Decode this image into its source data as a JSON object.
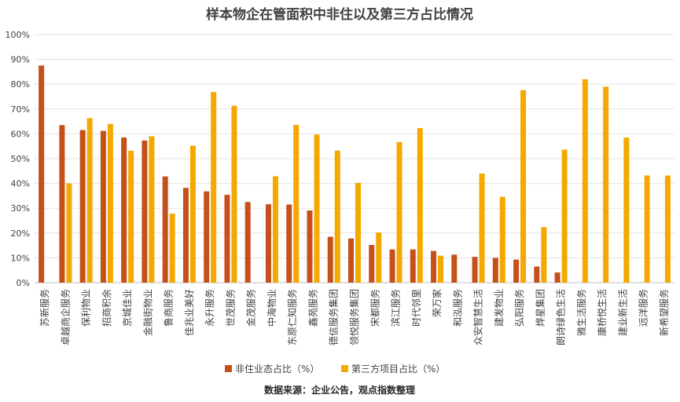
{
  "chart_data": {
    "type": "bar",
    "title": "样本物企在管面积中非住以及第三方占比情况",
    "source": "数据来源：企业公告，观点指数整理",
    "ylim": [
      0,
      100
    ],
    "y_ticks": [
      "0%",
      "10%",
      "20%",
      "30%",
      "40%",
      "50%",
      "60%",
      "70%",
      "80%",
      "90%",
      "100%"
    ],
    "grid": true,
    "legend_position": "bottom",
    "categories": [
      "苏新服务",
      "卓越商企服务",
      "保利物业",
      "招商积余",
      "京城佳业",
      "金融街物业",
      "鲁商服务",
      "佳兆业美好",
      "永升服务",
      "世茂服务",
      "金茂服务",
      "中海物业",
      "东原仁知服务",
      "鑫苑服务",
      "德信服务集团",
      "领悦服务集团",
      "宋都服务",
      "滨江服务",
      "时代邻里",
      "荣万家",
      "和泓服务",
      "众安智慧生活",
      "建发物业",
      "弘阳服务",
      "烨星集团",
      "朗诗绿色生活",
      "雅生活服务",
      "康桥悦生活",
      "建业新生活",
      "远洋服务",
      "新希望服务"
    ],
    "series": [
      {
        "name": "非住业态占比（%）",
        "color": "#C5501A",
        "values": [
          87.5,
          63.5,
          61.5,
          61.2,
          58.5,
          57.3,
          42.8,
          38.2,
          36.8,
          35.4,
          32.5,
          31.6,
          31.5,
          29.1,
          18.5,
          17.8,
          15.2,
          13.4,
          13.4,
          12.8,
          11.3,
          10.4,
          10.0,
          9.3,
          6.5,
          4.1,
          null,
          null,
          null,
          null,
          null
        ]
      },
      {
        "name": "第三方项目占比（%）",
        "color": "#F5A800",
        "values": [
          null,
          40.0,
          66.3,
          64.0,
          53.2,
          59.0,
          27.8,
          55.2,
          76.8,
          71.3,
          null,
          42.9,
          63.6,
          59.7,
          53.2,
          40.2,
          20.2,
          56.7,
          62.3,
          10.9,
          null,
          44.0,
          34.6,
          77.6,
          22.4,
          53.6,
          82.0,
          79.0,
          58.5,
          43.2,
          43.2
        ]
      }
    ]
  }
}
